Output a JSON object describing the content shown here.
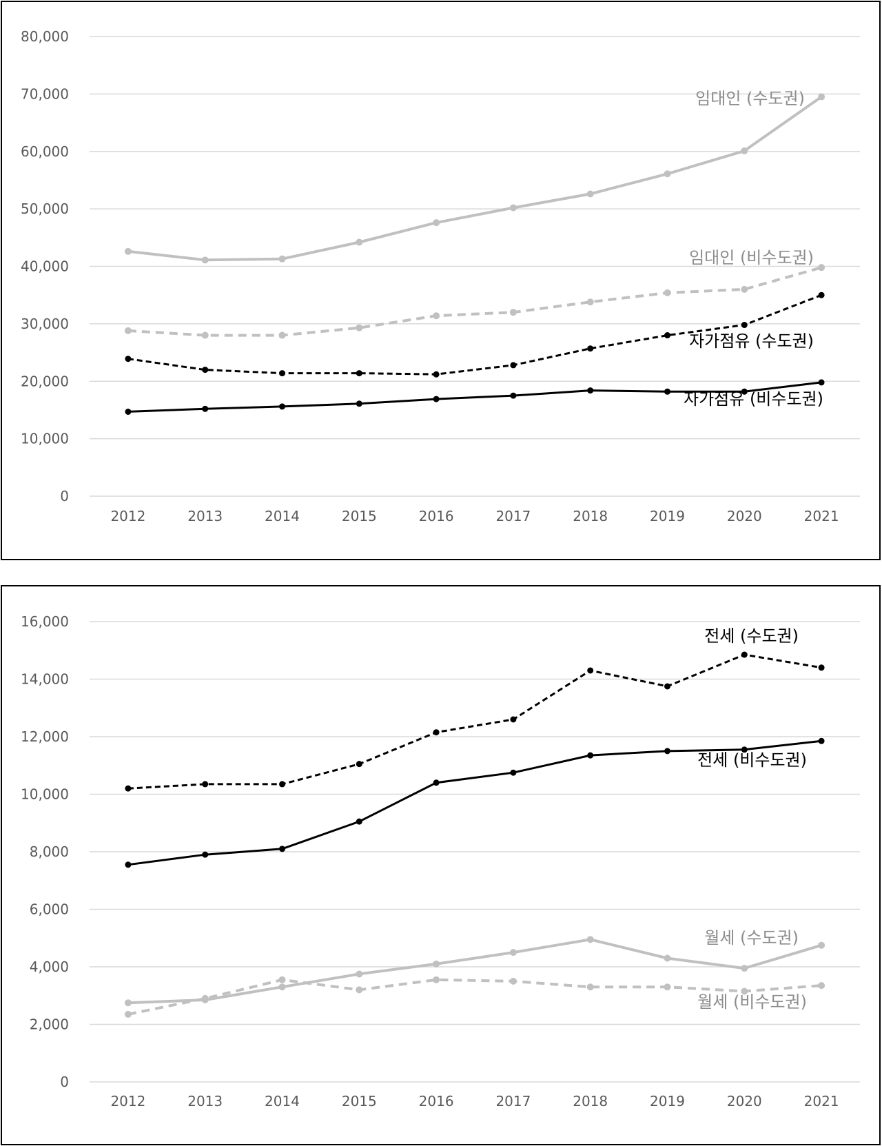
{
  "chart_data": [
    {
      "type": "line",
      "title": "",
      "xlabel": "",
      "ylabel": "",
      "categories": [
        "2012",
        "2013",
        "2014",
        "2015",
        "2016",
        "2017",
        "2018",
        "2019",
        "2020",
        "2021"
      ],
      "ylim": [
        0,
        80000
      ],
      "yticks": [
        0,
        10000,
        20000,
        30000,
        40000,
        50000,
        60000,
        70000,
        80000
      ],
      "ytick_labels": [
        "0",
        "10,000",
        "20,000",
        "30,000",
        "40,000",
        "50,000",
        "60,000",
        "70,000",
        "80,000"
      ],
      "grid": true,
      "legend": "inline labels",
      "series": [
        {
          "name": "임대인 (수도권)",
          "values": [
            42600,
            41100,
            41300,
            44200,
            47600,
            50200,
            52600,
            56100,
            60100,
            69500
          ],
          "color": "#c0c0c0",
          "dash": false
        },
        {
          "name": "임대인 (비수도권)",
          "values": [
            28800,
            28000,
            28000,
            29300,
            31400,
            32000,
            33800,
            35400,
            36000,
            39800
          ],
          "color": "#c0c0c0",
          "dash": true
        },
        {
          "name": "자가점유 (수도권)",
          "values": [
            23900,
            22000,
            21400,
            21400,
            21200,
            22800,
            25700,
            28000,
            29800,
            35000
          ],
          "color": "#000000",
          "dash": true
        },
        {
          "name": "자가점유 (비수도권)",
          "values": [
            14700,
            15200,
            15600,
            16100,
            16900,
            17500,
            18400,
            18200,
            18200,
            19800
          ],
          "color": "#000000",
          "dash": false
        }
      ]
    },
    {
      "type": "line",
      "title": "",
      "xlabel": "",
      "ylabel": "",
      "categories": [
        "2012",
        "2013",
        "2014",
        "2015",
        "2016",
        "2017",
        "2018",
        "2019",
        "2020",
        "2021"
      ],
      "ylim": [
        0,
        16000
      ],
      "yticks": [
        0,
        2000,
        4000,
        6000,
        8000,
        10000,
        12000,
        14000,
        16000
      ],
      "ytick_labels": [
        "0",
        "2,000",
        "4,000",
        "6,000",
        "8,000",
        "10,000",
        "12,000",
        "14,000",
        "16,000"
      ],
      "grid": true,
      "legend": "inline labels",
      "series": [
        {
          "name": "전세 (수도권)",
          "values": [
            10200,
            10350,
            10350,
            11050,
            12150,
            12600,
            14300,
            13750,
            14850,
            14400
          ],
          "color": "#000000",
          "dash": true
        },
        {
          "name": "전세 (비수도권)",
          "values": [
            7550,
            7900,
            8100,
            9050,
            10400,
            10750,
            11350,
            11500,
            11550,
            11850
          ],
          "color": "#000000",
          "dash": false
        },
        {
          "name": "월세 (수도권)",
          "values": [
            2750,
            2850,
            3300,
            3750,
            4100,
            4500,
            4950,
            4300,
            3950,
            4750
          ],
          "color": "#c0c0c0",
          "dash": false
        },
        {
          "name": "월세 (비수도권)",
          "values": [
            2350,
            2900,
            3550,
            3200,
            3550,
            3500,
            3300,
            3300,
            3150,
            3350
          ],
          "color": "#c0c0c0",
          "dash": true
        }
      ]
    }
  ]
}
